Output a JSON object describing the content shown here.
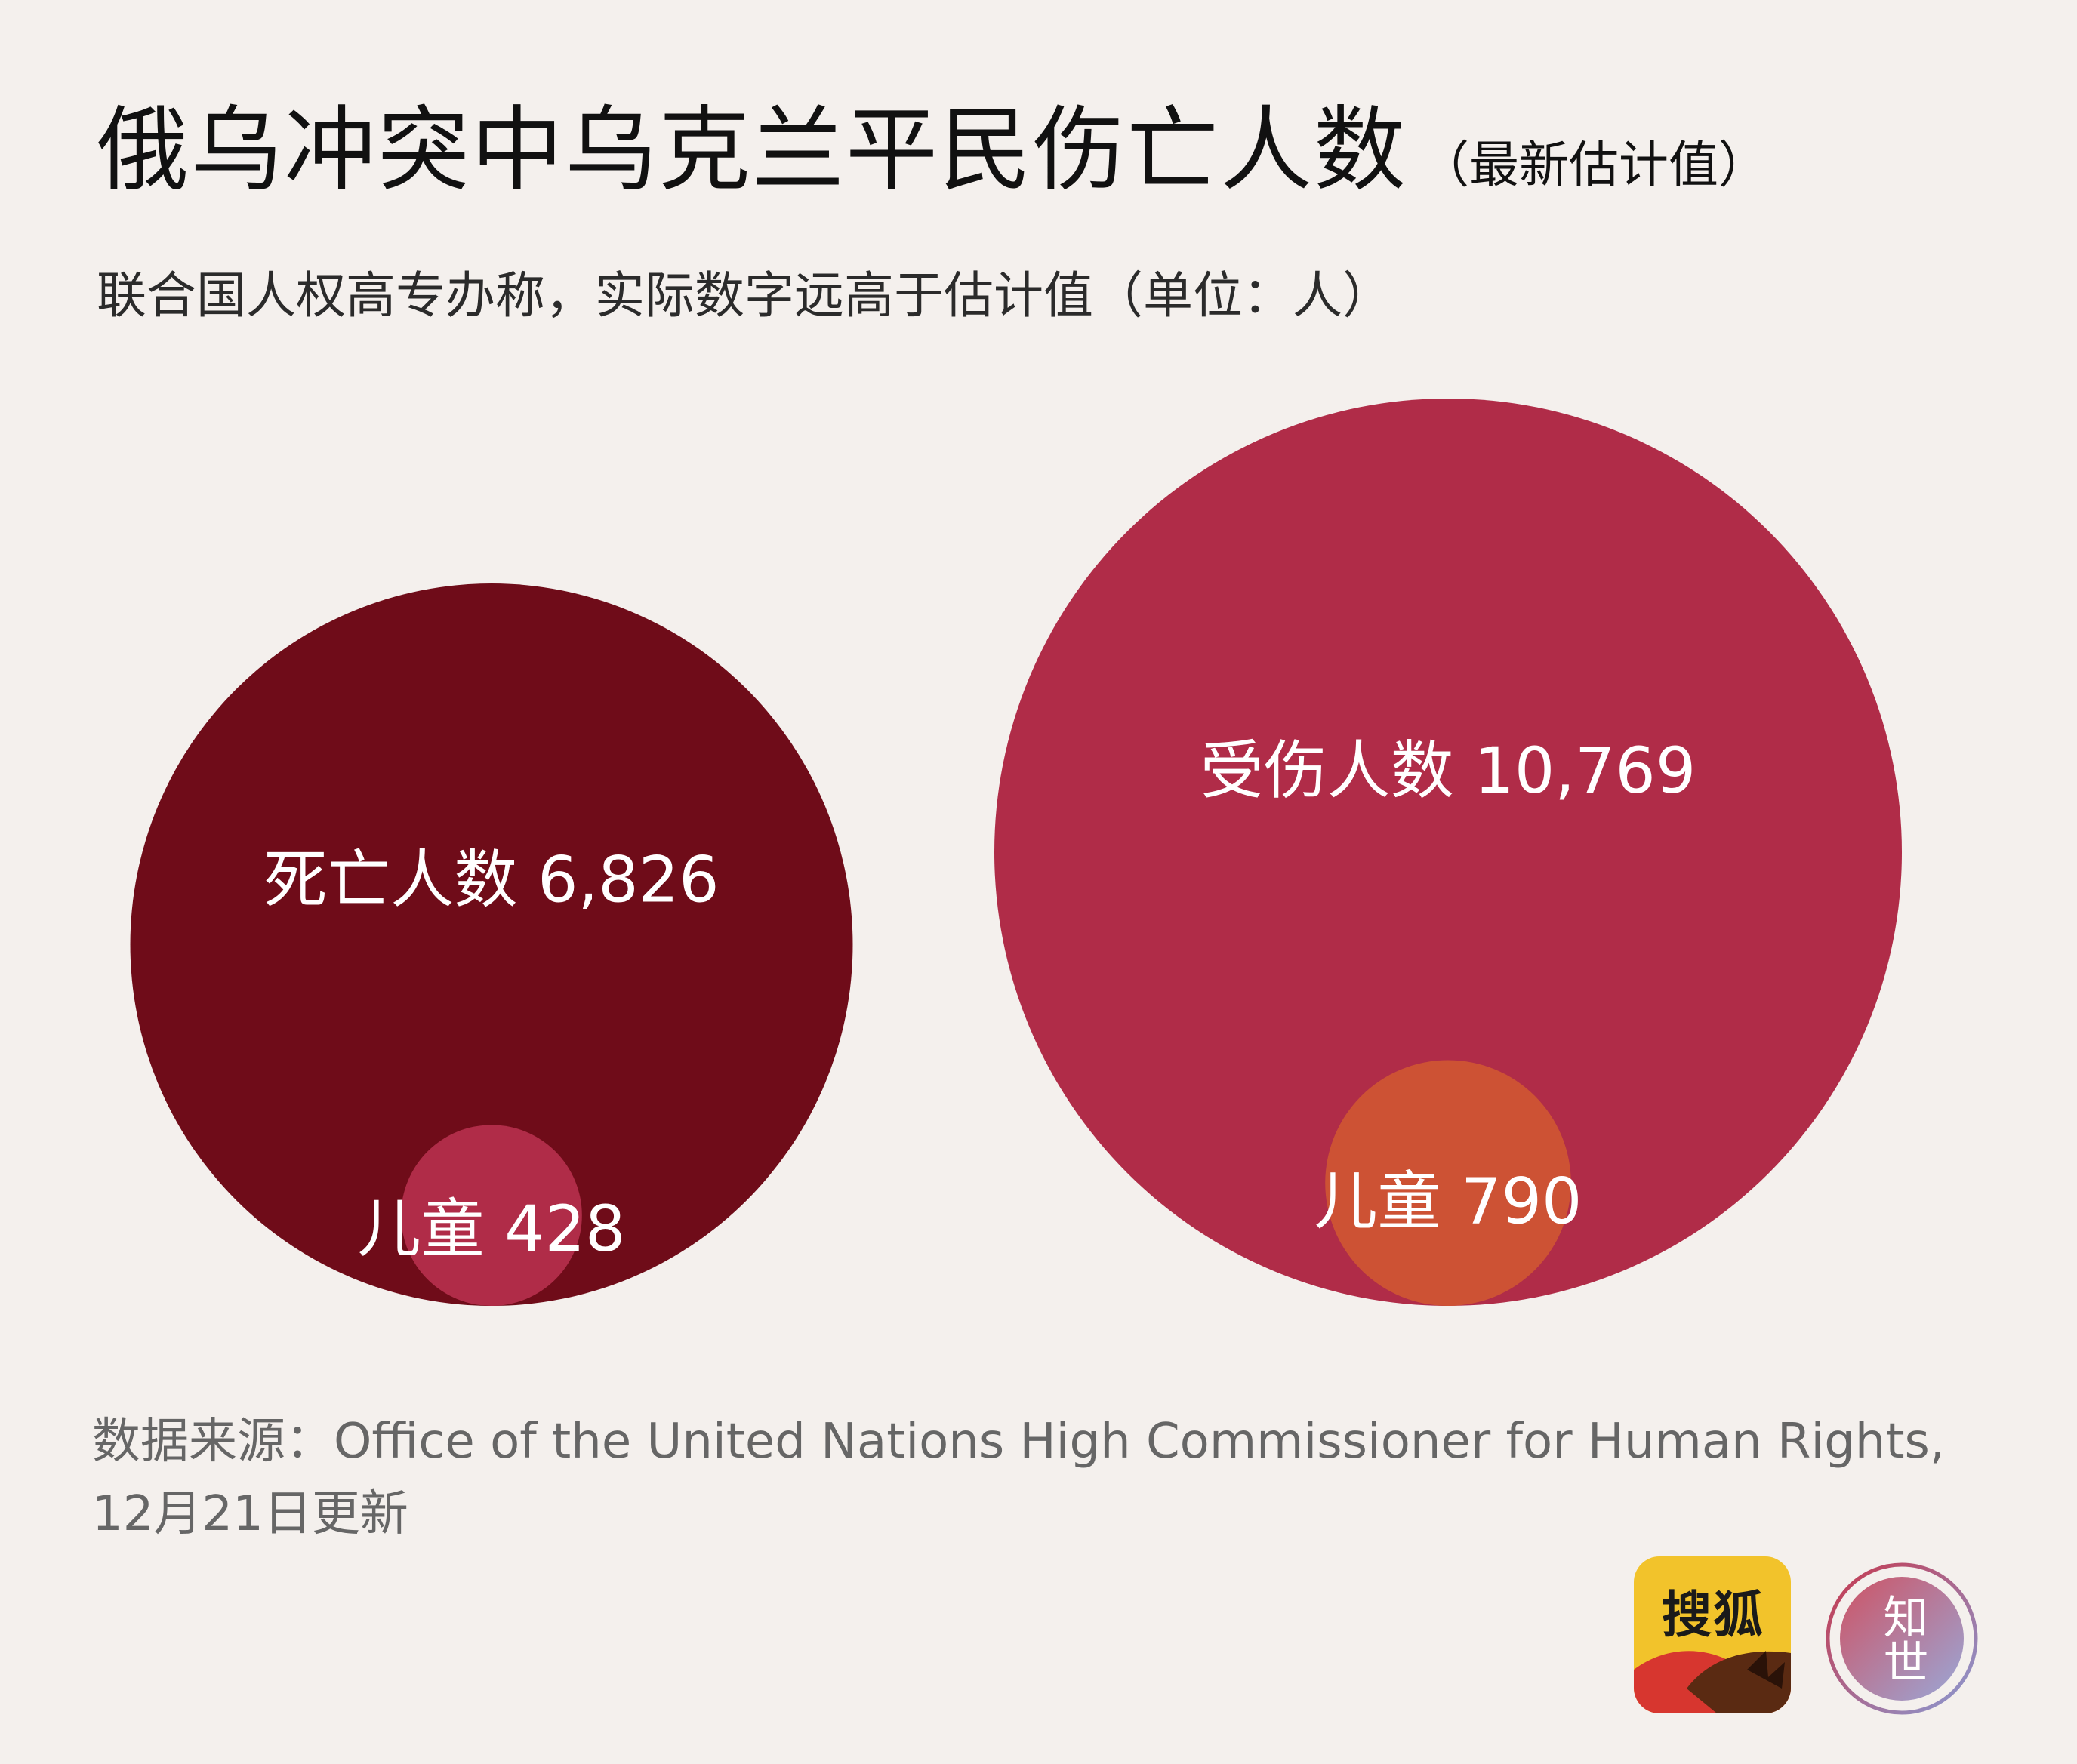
{
  "header": {
    "title": "俄乌冲突中乌克兰平民伤亡人数",
    "title_note": "（最新估计值）",
    "subtitle": "联合国人权高专办称，实际数字远高于估计值（单位：人）"
  },
  "footer": {
    "source_line_1": "数据来源：Office of the United Nations High Commissioner for Human Rights,",
    "source_line_2": "12月21日更新"
  },
  "logos": {
    "sohu_text": "搜狐",
    "zhishi_text": "知世"
  },
  "colors": {
    "background": "#f4f0ed",
    "deaths": "#6f0c19",
    "injuries": "#b02c48",
    "children_deaths": "#b02c48",
    "children_injuries": "#cd5234",
    "sohu_yellow": "#f2c32b"
  },
  "chart_data": {
    "type": "bubble",
    "title": "俄乌冲突中乌克兰平民伤亡人数",
    "unit": "人",
    "bubbles": [
      {
        "key": "deaths",
        "label": "死亡人数",
        "value": 6826,
        "value_text": "6,826",
        "inner": {
          "label": "儿童",
          "value": 428,
          "value_text": "428"
        }
      },
      {
        "key": "injuries",
        "label": "受伤人数",
        "value": 10769,
        "value_text": "10,769",
        "inner": {
          "label": "儿童",
          "value": 790,
          "value_text": "790"
        }
      }
    ]
  }
}
